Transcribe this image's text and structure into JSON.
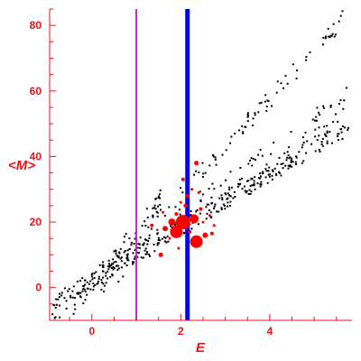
{
  "chart_data": {
    "type": "scatter",
    "title": "",
    "xlabel": "E",
    "ylabel": "<M>",
    "xlim": [
      -0.95,
      5.85
    ],
    "ylim": [
      -10,
      85
    ],
    "xticks": [
      0,
      2,
      4
    ],
    "yticks": [
      0,
      20,
      40,
      60,
      80
    ],
    "grid": false,
    "axis_color": "#e8141b",
    "point_color": "#000000",
    "highlight_color": "#ff0000",
    "vertical_lines": [
      {
        "x": 1.0,
        "color": "#cc22cc",
        "weight": "thin"
      },
      {
        "x": 2.15,
        "color": "#0000ff",
        "weight": "thick"
      }
    ],
    "series": [
      {
        "color": "#000000",
        "bands": [
          {
            "x_start": -0.9,
            "x_end": 5.8,
            "y_start": -5,
            "y_end": 49,
            "spread": 2.5,
            "n": 260
          },
          {
            "x_start": -0.9,
            "x_end": 5.8,
            "y_start": -8,
            "y_end": 57,
            "spread": 5,
            "n": 160
          },
          {
            "x_start": 0.2,
            "x_end": 5.8,
            "y_start": 2,
            "y_end": 84,
            "spread": 3,
            "n": 110
          },
          {
            "x_start": -0.3,
            "x_end": 1.6,
            "y_start": -4,
            "y_end": 28,
            "spread": 3,
            "n": 60
          }
        ]
      },
      {
        "color": "#ff0000",
        "points": [
          {
            "x": 1.9,
            "y": 17,
            "size": 7
          },
          {
            "x": 2.05,
            "y": 20,
            "size": 8
          },
          {
            "x": 2.35,
            "y": 14,
            "size": 7
          },
          {
            "x": 2.3,
            "y": 21,
            "size": 5
          },
          {
            "x": 1.8,
            "y": 20,
            "size": 4
          },
          {
            "x": 1.65,
            "y": 18,
            "size": 3
          },
          {
            "x": 2.55,
            "y": 16,
            "size": 3
          },
          {
            "x": 2.7,
            "y": 16.5,
            "size": 2
          },
          {
            "x": 1.55,
            "y": 10,
            "size": 2.5
          },
          {
            "x": 1.35,
            "y": 19,
            "size": 2
          },
          {
            "x": 2.35,
            "y": 38,
            "size": 2.5
          },
          {
            "x": 2.05,
            "y": 33,
            "size": 2
          },
          {
            "x": 2.1,
            "y": 25,
            "size": 2
          },
          {
            "x": 2.15,
            "y": 28,
            "size": 2
          },
          {
            "x": 1.9,
            "y": 22.5,
            "size": 2
          },
          {
            "x": 2.2,
            "y": 17,
            "size": 2
          },
          {
            "x": 2.45,
            "y": 24,
            "size": 2
          },
          {
            "x": 2.65,
            "y": 22,
            "size": 1.5
          },
          {
            "x": 1.75,
            "y": 15,
            "size": 1.5
          },
          {
            "x": 2.25,
            "y": 30,
            "size": 1.5
          },
          {
            "x": 1.6,
            "y": 23,
            "size": 1.5
          },
          {
            "x": 2.5,
            "y": 20,
            "size": 1.5
          },
          {
            "x": 1.95,
            "y": 12,
            "size": 1.5
          },
          {
            "x": 2.75,
            "y": 19,
            "size": 1.5
          },
          {
            "x": 2.0,
            "y": 26,
            "size": 1.5
          },
          {
            "x": 2.4,
            "y": 29,
            "size": 1.5
          }
        ]
      }
    ]
  }
}
